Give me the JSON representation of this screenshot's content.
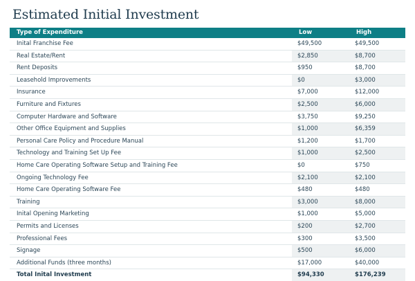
{
  "title": "Estimated Initial Investment",
  "table": {
    "headers": {
      "type": "Type of Expenditure",
      "low": "Low",
      "high": "High"
    },
    "rows": [
      {
        "type": "Inital Franchise Fee",
        "low": "$49,500",
        "high": "$49,500"
      },
      {
        "type": "Real Estate/Rent",
        "low": "$2,850",
        "high": "$8,700"
      },
      {
        "type": "Rent Deposits",
        "low": "$950",
        "high": "$8,700"
      },
      {
        "type": "Leasehold Improvements",
        "low": "$0",
        "high": "$3,000"
      },
      {
        "type": "Insurance",
        "low": "$7,000",
        "high": "$12,000"
      },
      {
        "type": "Furniture and Fixtures",
        "low": "$2,500",
        "high": "$6,000"
      },
      {
        "type": "Computer Hardware and Software",
        "low": "$3,750",
        "high": "$9,250"
      },
      {
        "type": "Other Office Equipment and Supplies",
        "low": "$1,000",
        "high": "$6,359"
      },
      {
        "type": "Personal Care Policy and Procedure Manual",
        "low": "$1,200",
        "high": "$1,700"
      },
      {
        "type": "Technology and Training Set Up Fee",
        "low": "$1,000",
        "high": "$2,500"
      },
      {
        "type": "Home Care Operating Software Setup and Training Fee",
        "low": "$0",
        "high": "$750"
      },
      {
        "type": "Ongoing Technology Fee",
        "low": "$2,100",
        "high": "$2,100"
      },
      {
        "type": "Home Care Operating Software Fee",
        "low": "$480",
        "high": "$480"
      },
      {
        "type": "Training",
        "low": "$3,000",
        "high": "$8,000"
      },
      {
        "type": "Inital Opening Marketing",
        "low": "$1,000",
        "high": "$5,000"
      },
      {
        "type": "Permits and Licenses",
        "low": "$200",
        "high": "$2,700"
      },
      {
        "type": "Professional Fees",
        "low": "$300",
        "high": "$3,500"
      },
      {
        "type": "Signage",
        "low": "$500",
        "high": "$6,000"
      },
      {
        "type": "Additional Funds (three months)",
        "low": "$17,000",
        "high": "$40,000"
      }
    ],
    "total": {
      "type": "Total Inital Investment",
      "low": "$94,330",
      "high": "$176,239"
    }
  }
}
